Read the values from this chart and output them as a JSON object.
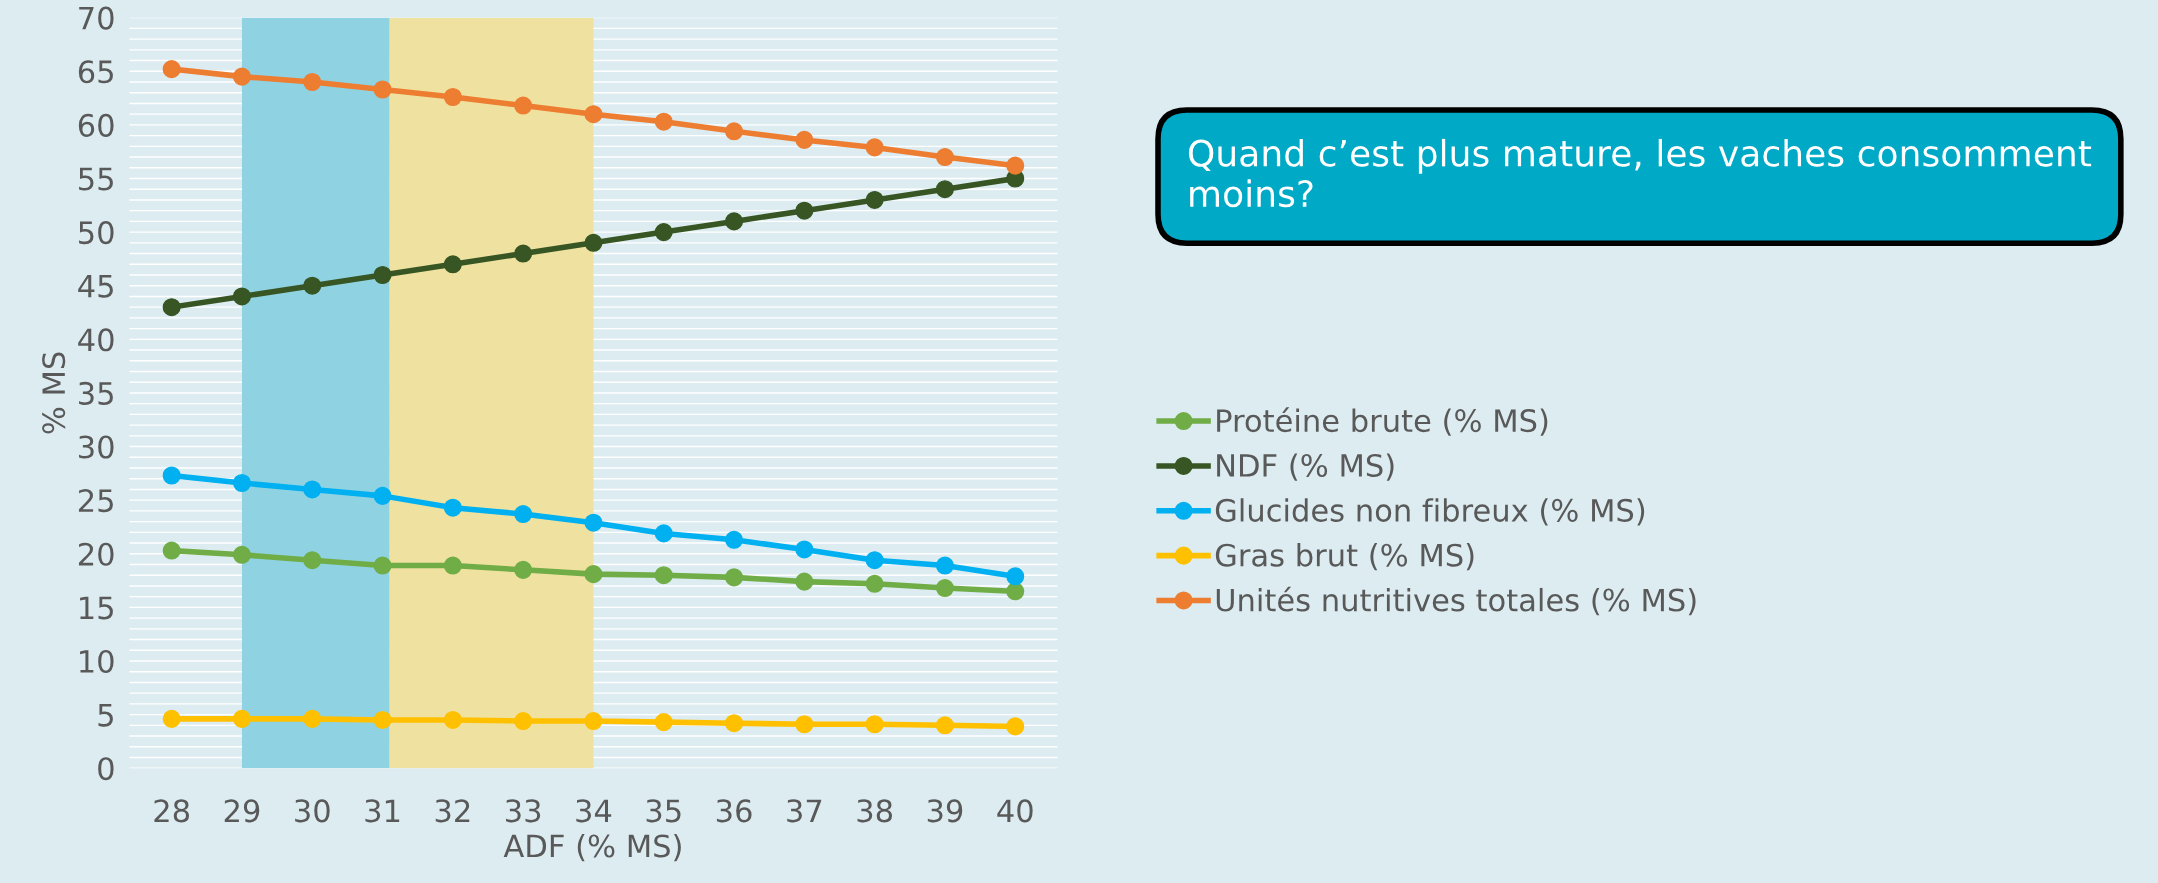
{
  "chart_data": {
    "type": "line",
    "xlabel": "ADF (% MS)",
    "ylabel": "% MS",
    "x": [
      28,
      29,
      30,
      31,
      32,
      33,
      34,
      35,
      36,
      37,
      38,
      39,
      40
    ],
    "series": [
      {
        "name": "Protéine brute (% MS)",
        "color": "#70ad47",
        "values": [
          20.3,
          19.9,
          19.4,
          18.9,
          18.9,
          18.5,
          18.1,
          18.0,
          17.8,
          17.4,
          17.2,
          16.8,
          16.5
        ]
      },
      {
        "name": "NDF (% MS)",
        "color": "#375623",
        "values": [
          43,
          44,
          45,
          46,
          47,
          48,
          49,
          50,
          51,
          52,
          53,
          54,
          55
        ]
      },
      {
        "name": "Glucides non fibreux (% MS)",
        "color": "#00b0f0",
        "values": [
          27.3,
          26.6,
          26.0,
          25.4,
          24.3,
          23.7,
          22.9,
          21.9,
          21.3,
          20.4,
          19.4,
          18.9,
          17.9
        ]
      },
      {
        "name": "Gras brut (% MS)",
        "color": "#ffc000",
        "values": [
          4.6,
          4.6,
          4.6,
          4.5,
          4.5,
          4.4,
          4.4,
          4.3,
          4.2,
          4.1,
          4.1,
          4.0,
          3.9
        ]
      },
      {
        "name": "Unités nutritives totales (% MS)",
        "color": "#ed7d31",
        "values": [
          65.2,
          64.5,
          64.0,
          63.3,
          62.6,
          61.8,
          61.0,
          60.3,
          59.4,
          58.6,
          57.9,
          57.0,
          56.2
        ]
      }
    ],
    "xlim": [
      27.4,
      40.6
    ],
    "xticks": [
      28,
      29,
      30,
      31,
      32,
      33,
      34,
      35,
      36,
      37,
      38,
      39,
      40
    ],
    "ylim": [
      0,
      70
    ],
    "yticks": [
      0,
      {
        "value": 1,
        "label": null
      },
      {
        "value": 2,
        "label": null
      },
      {
        "value": 3,
        "label": null
      },
      {
        "value": 4,
        "label": null
      },
      5,
      {
        "value": 6,
        "label": null
      },
      {
        "value": 7,
        "label": null
      },
      {
        "value": 8,
        "label": null
      },
      {
        "value": 9,
        "label": null
      },
      10,
      {
        "value": 11,
        "label": null
      },
      {
        "value": 12,
        "label": null
      },
      {
        "value": 13,
        "label": null
      },
      {
        "value": 14,
        "label": null
      },
      15,
      {
        "value": 16,
        "label": null
      },
      {
        "value": 17,
        "label": null
      },
      {
        "value": 18,
        "label": null
      },
      {
        "value": 19,
        "label": null
      },
      20,
      {
        "value": 21,
        "label": null
      },
      {
        "value": 22,
        "label": null
      },
      {
        "value": 23,
        "label": null
      },
      {
        "value": 24,
        "label": null
      },
      25,
      {
        "value": 26,
        "label": null
      },
      {
        "value": 27,
        "label": null
      },
      {
        "value": 28,
        "label": null
      },
      {
        "value": 29,
        "label": null
      },
      30,
      {
        "value": 31,
        "label": null
      },
      {
        "value": 32,
        "label": null
      },
      {
        "value": 33,
        "label": null
      },
      {
        "value": 34,
        "label": null
      },
      35,
      {
        "value": 36,
        "label": null
      },
      {
        "value": 37,
        "label": null
      },
      {
        "value": 38,
        "label": null
      },
      {
        "value": 39,
        "label": null
      },
      40,
      {
        "value": 41,
        "label": null
      },
      {
        "value": 42,
        "label": null
      },
      {
        "value": 43,
        "label": null
      },
      {
        "value": 44,
        "label": null
      },
      45,
      {
        "value": 46,
        "label": null
      },
      {
        "value": 47,
        "label": null
      },
      {
        "value": 48,
        "label": null
      },
      {
        "value": 49,
        "label": null
      },
      50,
      {
        "value": 51,
        "label": null
      },
      {
        "value": 52,
        "label": null
      },
      {
        "value": 53,
        "label": null
      },
      {
        "value": 54,
        "label": null
      },
      55,
      {
        "value": 56,
        "label": null
      },
      {
        "value": 57,
        "label": null
      },
      {
        "value": 58,
        "label": null
      },
      {
        "value": 59,
        "label": null
      },
      60,
      {
        "value": 61,
        "label": null
      },
      {
        "value": 62,
        "label": null
      },
      {
        "value": 63,
        "label": null
      },
      {
        "value": 64,
        "label": null
      },
      65,
      {
        "value": 66,
        "label": null
      },
      {
        "value": 67,
        "label": null
      },
      {
        "value": 68,
        "label": null
      },
      {
        "value": 69,
        "label": null
      },
      70
    ],
    "bands": [
      {
        "axis": "x",
        "from": 29,
        "to": 31.1,
        "color": "#8fd3e3"
      },
      {
        "axis": "x",
        "from": 31.1,
        "to": 34,
        "color": "#efe1a0"
      }
    ],
    "grid": "y",
    "legend": "right",
    "marker": "circle",
    "line_style": "solid",
    "annotations": [
      "Quand c’est plus mature, les vaches consomment moins?"
    ]
  }
}
